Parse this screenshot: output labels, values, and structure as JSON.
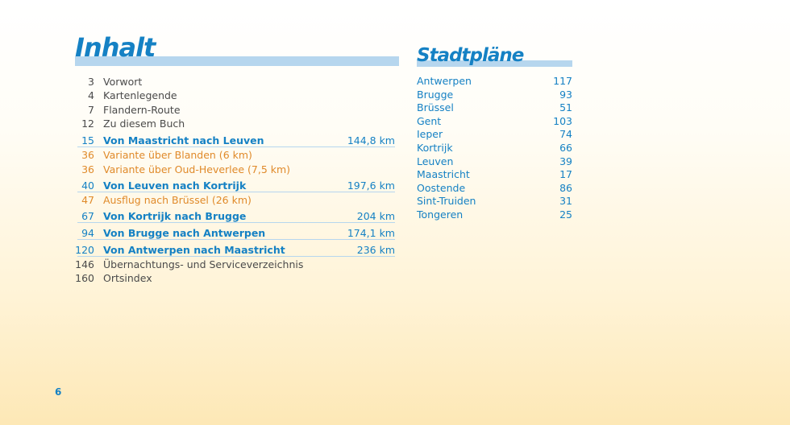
{
  "contents": {
    "title": "Inhalt",
    "entries": [
      {
        "page": "3",
        "text": "Vorwort",
        "dist": ""
      },
      {
        "page": "4",
        "text": "Kartenlegende",
        "dist": ""
      },
      {
        "page": "7",
        "text": "Flandern-Route",
        "dist": ""
      },
      {
        "page": "12",
        "text": "Zu diesem Buch",
        "dist": ""
      },
      {
        "page": "15",
        "text": "Von Maastricht nach Leuven",
        "dist": "144,8 km"
      },
      {
        "page": "36",
        "text": "Variante über Blanden (6 km)",
        "dist": ""
      },
      {
        "page": "36",
        "text": "Variante über Oud-Heverlee (7,5 km)",
        "dist": ""
      },
      {
        "page": "40",
        "text": "Von Leuven nach Kortrijk",
        "dist": "197,6 km"
      },
      {
        "page": "47",
        "text": "Ausflug nach Brüssel (26 km)",
        "dist": ""
      },
      {
        "page": "67",
        "text": "Von Kortrijk nach Brugge",
        "dist": "204 km"
      },
      {
        "page": "94",
        "text": "Von Brugge nach Antwerpen",
        "dist": "174,1 km"
      },
      {
        "page": "120",
        "text": "Von Antwerpen nach Maastricht",
        "dist": "236 km"
      },
      {
        "page": "146",
        "text": "Übernachtungs- und Serviceverzeichnis",
        "dist": ""
      },
      {
        "page": "160",
        "text": "Ortsindex",
        "dist": ""
      }
    ]
  },
  "city_maps": {
    "title": "Stadtpläne",
    "entries": [
      {
        "city": "Antwerpen",
        "page": "117"
      },
      {
        "city": "Brugge",
        "page": "93"
      },
      {
        "city": "Brüssel",
        "page": "51"
      },
      {
        "city": "Gent",
        "page": "103"
      },
      {
        "city": "Ieper",
        "page": "74"
      },
      {
        "city": "Kortrijk",
        "page": "66"
      },
      {
        "city": "Leuven",
        "page": "39"
      },
      {
        "city": "Maastricht",
        "page": "17"
      },
      {
        "city": "Oostende",
        "page": "86"
      },
      {
        "city": "Sint-Truiden",
        "page": "31"
      },
      {
        "city": "Tongeren",
        "page": "25"
      }
    ]
  },
  "page_number": "6",
  "colors": {
    "accent": "#1581c4",
    "variant": "#e08a2a",
    "text": "#4a4a4a",
    "bar": "#b6d6ee"
  }
}
